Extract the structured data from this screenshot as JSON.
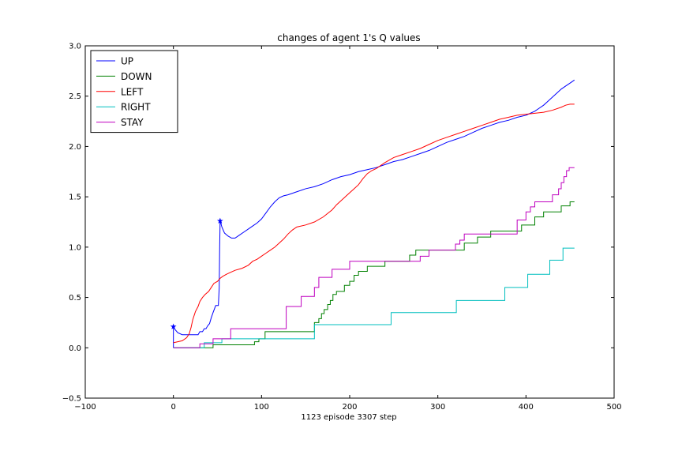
{
  "chart_data": {
    "type": "line",
    "title": "changes of agent 1's Q values",
    "xlabel": "1123 episode 3307 step",
    "ylabel": "",
    "xlim": [
      -100,
      500
    ],
    "ylim": [
      -0.5,
      3.0
    ],
    "xticks": [
      -100,
      0,
      100,
      200,
      300,
      400,
      500
    ],
    "yticks": [
      -0.5,
      0.0,
      0.5,
      1.0,
      1.5,
      2.0,
      2.5,
      3.0
    ],
    "xtick_labels": [
      "−100",
      "0",
      "100",
      "200",
      "300",
      "400",
      "500"
    ],
    "ytick_labels": [
      "−0.5",
      "0.0",
      "0.5",
      "1.0",
      "1.5",
      "2.0",
      "2.5",
      "3.0"
    ],
    "grid": false,
    "legend_position": "top-left",
    "series": [
      {
        "name": "UP",
        "color": "#0000ff",
        "markers": [
          [
            0,
            0.21
          ],
          [
            53,
            1.26
          ]
        ],
        "x": [
          0,
          0,
          2,
          5,
          10,
          15,
          20,
          25,
          28,
          30,
          33,
          35,
          37,
          39,
          41,
          43,
          45,
          48,
          51,
          52,
          52.5,
          53,
          53.5,
          55,
          58,
          62,
          66,
          70,
          75,
          80,
          85,
          90,
          95,
          100,
          105,
          110,
          115,
          120,
          125,
          130,
          140,
          150,
          160,
          170,
          180,
          190,
          200,
          210,
          220,
          230,
          240,
          250,
          260,
          270,
          280,
          290,
          300,
          310,
          320,
          330,
          340,
          350,
          360,
          370,
          380,
          390,
          400,
          405,
          410,
          415,
          420,
          425,
          430,
          435,
          440,
          445,
          450,
          455
        ],
        "y": [
          0.0,
          0.21,
          0.18,
          0.15,
          0.13,
          0.13,
          0.13,
          0.13,
          0.13,
          0.16,
          0.16,
          0.19,
          0.19,
          0.22,
          0.24,
          0.3,
          0.35,
          0.42,
          0.42,
          0.6,
          1.0,
          1.26,
          1.25,
          1.2,
          1.14,
          1.11,
          1.09,
          1.09,
          1.12,
          1.15,
          1.18,
          1.21,
          1.24,
          1.28,
          1.34,
          1.4,
          1.45,
          1.49,
          1.51,
          1.52,
          1.55,
          1.58,
          1.6,
          1.63,
          1.67,
          1.7,
          1.72,
          1.75,
          1.77,
          1.79,
          1.82,
          1.85,
          1.87,
          1.9,
          1.93,
          1.96,
          2.0,
          2.04,
          2.07,
          2.1,
          2.14,
          2.18,
          2.21,
          2.24,
          2.26,
          2.29,
          2.31,
          2.33,
          2.35,
          2.38,
          2.41,
          2.45,
          2.49,
          2.53,
          2.57,
          2.6,
          2.63,
          2.66
        ]
      },
      {
        "name": "DOWN",
        "color": "#008000",
        "markers": [],
        "x": [
          0,
          45,
          45,
          92,
          92,
          97,
          97,
          104,
          104,
          160,
          160,
          165,
          165,
          168,
          168,
          171,
          171,
          175,
          175,
          178,
          178,
          181,
          181,
          185,
          185,
          194,
          194,
          200,
          200,
          205,
          205,
          210,
          210,
          220,
          220,
          240,
          240,
          268,
          268,
          275,
          275,
          330,
          330,
          345,
          345,
          360,
          360,
          395,
          395,
          410,
          410,
          420,
          420,
          440,
          440,
          450,
          450,
          455
        ],
        "y": [
          0.0,
          0.0,
          0.03,
          0.03,
          0.06,
          0.06,
          0.09,
          0.09,
          0.16,
          0.16,
          0.25,
          0.25,
          0.29,
          0.29,
          0.34,
          0.34,
          0.38,
          0.38,
          0.43,
          0.43,
          0.47,
          0.47,
          0.53,
          0.53,
          0.56,
          0.56,
          0.62,
          0.62,
          0.66,
          0.66,
          0.72,
          0.72,
          0.76,
          0.76,
          0.81,
          0.81,
          0.86,
          0.86,
          0.92,
          0.92,
          0.97,
          0.97,
          1.04,
          1.04,
          1.1,
          1.1,
          1.16,
          1.16,
          1.22,
          1.22,
          1.3,
          1.3,
          1.35,
          1.35,
          1.41,
          1.41,
          1.45,
          1.45
        ]
      },
      {
        "name": "LEFT",
        "color": "#ff0000",
        "markers": [],
        "x": [
          0,
          5,
          10,
          15,
          18,
          20,
          22,
          25,
          28,
          30,
          33,
          36,
          40,
          43,
          46,
          50,
          53,
          56,
          60,
          65,
          70,
          78,
          85,
          90,
          95,
          100,
          105,
          110,
          115,
          120,
          125,
          130,
          135,
          140,
          150,
          160,
          170,
          180,
          185,
          190,
          195,
          200,
          205,
          210,
          215,
          220,
          225,
          230,
          235,
          240,
          250,
          260,
          270,
          280,
          290,
          300,
          310,
          320,
          330,
          340,
          350,
          360,
          370,
          380,
          390,
          400,
          410,
          420,
          430,
          440,
          445,
          450,
          455
        ],
        "y": [
          0.05,
          0.06,
          0.07,
          0.1,
          0.14,
          0.2,
          0.28,
          0.36,
          0.41,
          0.46,
          0.5,
          0.53,
          0.56,
          0.6,
          0.64,
          0.66,
          0.69,
          0.71,
          0.73,
          0.75,
          0.77,
          0.79,
          0.82,
          0.86,
          0.88,
          0.91,
          0.94,
          0.97,
          1.0,
          1.04,
          1.08,
          1.13,
          1.17,
          1.2,
          1.22,
          1.25,
          1.3,
          1.37,
          1.42,
          1.46,
          1.5,
          1.54,
          1.58,
          1.62,
          1.68,
          1.73,
          1.76,
          1.78,
          1.81,
          1.84,
          1.89,
          1.92,
          1.95,
          1.98,
          2.02,
          2.06,
          2.09,
          2.12,
          2.15,
          2.18,
          2.21,
          2.24,
          2.27,
          2.29,
          2.31,
          2.32,
          2.33,
          2.34,
          2.36,
          2.39,
          2.41,
          2.42,
          2.42
        ]
      },
      {
        "name": "RIGHT",
        "color": "#00bfbf",
        "markers": [],
        "x": [
          0,
          35,
          35,
          55,
          55,
          160,
          160,
          247,
          247,
          321,
          321,
          376,
          376,
          402,
          402,
          427,
          427,
          442,
          442,
          455
        ],
        "y": [
          0.0,
          0.0,
          0.05,
          0.05,
          0.09,
          0.09,
          0.23,
          0.23,
          0.35,
          0.35,
          0.47,
          0.47,
          0.6,
          0.6,
          0.73,
          0.73,
          0.87,
          0.87,
          0.99,
          0.99
        ]
      },
      {
        "name": "STAY",
        "color": "#bf00bf",
        "markers": [],
        "x": [
          0,
          30,
          30,
          45,
          45,
          65,
          65,
          128,
          128,
          145,
          145,
          160,
          160,
          165,
          165,
          180,
          180,
          200,
          200,
          280,
          280,
          290,
          290,
          320,
          320,
          325,
          325,
          330,
          330,
          390,
          390,
          400,
          400,
          405,
          405,
          410,
          410,
          430,
          430,
          437,
          437,
          440,
          440,
          443,
          443,
          446,
          446,
          449,
          449,
          455
        ],
        "y": [
          0.0,
          0.0,
          0.04,
          0.04,
          0.09,
          0.09,
          0.19,
          0.19,
          0.41,
          0.41,
          0.51,
          0.51,
          0.6,
          0.6,
          0.7,
          0.7,
          0.78,
          0.78,
          0.86,
          0.86,
          0.91,
          0.91,
          0.97,
          0.97,
          1.03,
          1.03,
          1.07,
          1.07,
          1.13,
          1.13,
          1.27,
          1.27,
          1.35,
          1.35,
          1.4,
          1.4,
          1.45,
          1.45,
          1.52,
          1.52,
          1.58,
          1.58,
          1.64,
          1.64,
          1.7,
          1.7,
          1.76,
          1.76,
          1.79,
          1.79
        ]
      }
    ]
  }
}
